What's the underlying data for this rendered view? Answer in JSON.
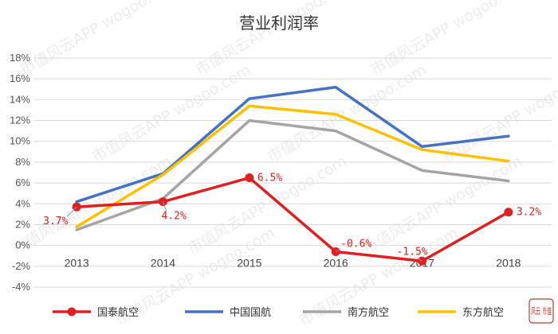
{
  "watermark_text": "市值风云APP  wogoo.com",
  "logo_text": "风云 市值",
  "chart_data": {
    "type": "line",
    "title": "营业利润率",
    "xlabel": "",
    "ylabel": "",
    "x": [
      "2013",
      "2014",
      "2015",
      "2016",
      "2017",
      "2018"
    ],
    "ylim": [
      -4,
      18
    ],
    "ytick_step": 2,
    "ytick_suffix": "%",
    "grid": true,
    "legend_position": "bottom",
    "series": [
      {
        "name": "国泰航空",
        "color": "#e02020",
        "values": [
          3.7,
          4.2,
          6.5,
          -0.6,
          -1.5,
          3.2
        ],
        "markers": true,
        "data_labels": [
          "3.7%",
          "4.2%",
          "6.5%",
          "-0.6%",
          "-1.5%",
          "3.2%"
        ]
      },
      {
        "name": "中国国航",
        "color": "#4472c4",
        "values": [
          4.2,
          6.9,
          14.1,
          15.2,
          9.5,
          10.5
        ],
        "markers": false
      },
      {
        "name": "南方航空",
        "color": "#a5a5a5",
        "values": [
          1.5,
          4.5,
          12.0,
          11.0,
          7.2,
          6.2
        ],
        "markers": false
      },
      {
        "name": "东方航空",
        "color": "#ffc000",
        "values": [
          1.8,
          6.8,
          13.4,
          12.6,
          9.2,
          8.1
        ],
        "markers": false
      }
    ]
  }
}
